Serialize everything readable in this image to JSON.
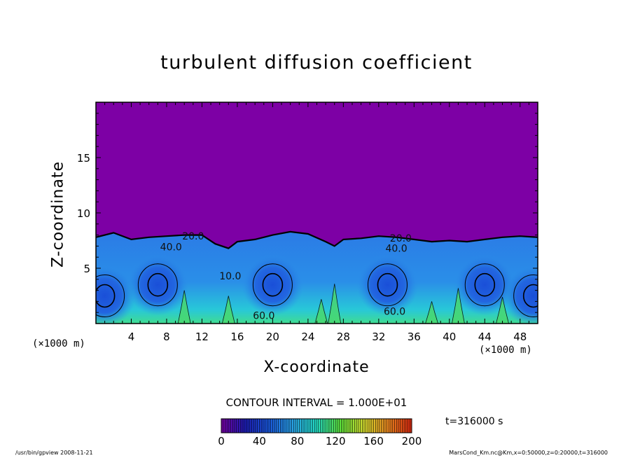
{
  "chart_data": {
    "type": "heatmap",
    "title": "turbulent diffusion coefficient",
    "xlabel": "X-coordinate",
    "ylabel": "Z-coordinate",
    "x_unit": "(×1000 m)",
    "xlim": [
      0,
      50
    ],
    "ylim": [
      0,
      20
    ],
    "x_ticks": [
      4,
      8,
      12,
      16,
      20,
      24,
      28,
      32,
      36,
      40,
      44,
      48
    ],
    "y_ticks": [
      5,
      10,
      15
    ],
    "boundary_layer_top": [
      {
        "x": 0,
        "z": 7.8
      },
      {
        "x": 2,
        "z": 8.2
      },
      {
        "x": 4,
        "z": 7.6
      },
      {
        "x": 6,
        "z": 7.8
      },
      {
        "x": 8,
        "z": 7.9
      },
      {
        "x": 10,
        "z": 8.0
      },
      {
        "x": 12,
        "z": 8.0
      },
      {
        "x": 13.5,
        "z": 7.2
      },
      {
        "x": 15,
        "z": 6.8
      },
      {
        "x": 16,
        "z": 7.4
      },
      {
        "x": 18,
        "z": 7.6
      },
      {
        "x": 20,
        "z": 8.0
      },
      {
        "x": 22,
        "z": 8.3
      },
      {
        "x": 24,
        "z": 8.1
      },
      {
        "x": 26,
        "z": 7.4
      },
      {
        "x": 27,
        "z": 7.0
      },
      {
        "x": 28,
        "z": 7.6
      },
      {
        "x": 30,
        "z": 7.7
      },
      {
        "x": 32,
        "z": 7.9
      },
      {
        "x": 34,
        "z": 7.8
      },
      {
        "x": 36,
        "z": 7.6
      },
      {
        "x": 38,
        "z": 7.4
      },
      {
        "x": 40,
        "z": 7.5
      },
      {
        "x": 42,
        "z": 7.4
      },
      {
        "x": 44,
        "z": 7.6
      },
      {
        "x": 46,
        "z": 7.8
      },
      {
        "x": 48,
        "z": 7.9
      },
      {
        "x": 50,
        "z": 7.8
      }
    ],
    "contour_labels": [
      {
        "text": "20.0",
        "x": 11,
        "z": 7.6
      },
      {
        "text": "40.0",
        "x": 8.5,
        "z": 6.6
      },
      {
        "text": "20.0",
        "x": 34.5,
        "z": 7.4
      },
      {
        "text": "40.0",
        "x": 34.0,
        "z": 6.5
      },
      {
        "text": "10.0",
        "x": 15.2,
        "z": 4.0
      },
      {
        "text": "60.0",
        "x": 19.0,
        "z": 0.4
      },
      {
        "text": "60.0",
        "x": 33.8,
        "z": 0.8
      }
    ],
    "eddy_cores": [
      {
        "x": 7,
        "z": 3.5,
        "value": 50
      },
      {
        "x": 20,
        "z": 3.5,
        "value": 50
      },
      {
        "x": 33,
        "z": 3.5,
        "value": 50
      },
      {
        "x": 44,
        "z": 3.5,
        "value": 45
      },
      {
        "x": 1,
        "z": 2.5,
        "value": 45
      },
      {
        "x": 49.5,
        "z": 2.5,
        "value": 45
      }
    ],
    "colorbar": {
      "min": 0,
      "max": 200,
      "ticks": [
        0,
        40,
        80,
        120,
        160,
        200
      ],
      "colors": [
        "#7a00a8",
        "#1d1db8",
        "#1a5ae0",
        "#2aa5ea",
        "#24e0c8",
        "#5ee63c",
        "#d8e030",
        "#f08a20",
        "#e02810"
      ]
    },
    "background_color": "#7d00a5",
    "contour_interval": "CONTOUR INTERVAL = 1.000E+01",
    "time": "t=316000 s"
  },
  "footer": {
    "left": "/usr/bin/gpview   2008-11-21",
    "right": "MarsCond_Km.nc@Km,x=0:50000,z=0:20000,t=316000"
  }
}
